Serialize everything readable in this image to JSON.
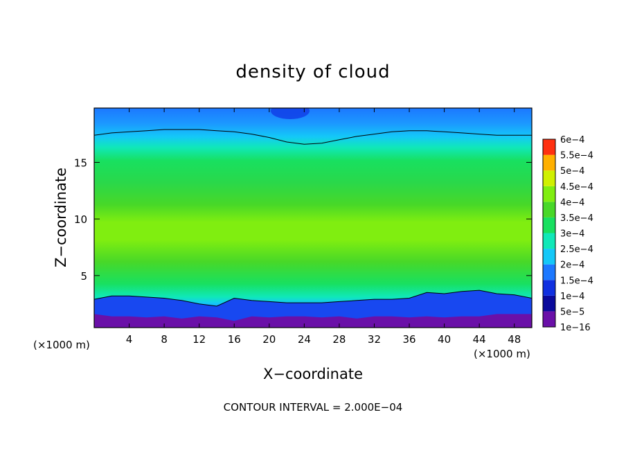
{
  "chart_data": {
    "type": "heatmap",
    "title": "density of cloud",
    "xlabel": "X−coordinate",
    "ylabel": "Z−coordinate",
    "x_unit": "(×1000 m)",
    "xlim": [
      0,
      50
    ],
    "ylim": [
      0.4,
      19.8
    ],
    "x_ticks": [
      4,
      8,
      12,
      16,
      20,
      24,
      28,
      32,
      36,
      40,
      44,
      48
    ],
    "y_ticks": [
      5,
      10,
      15
    ],
    "footer": "CONTOUR INTERVAL = 2.000E−04",
    "colorbar": {
      "labels": [
        "1e−16",
        "5e−5",
        "1e−4",
        "1.5e−4",
        "2e−4",
        "2.5e−4",
        "3e−4",
        "3.5e−4",
        "4e−4",
        "4.5e−4",
        "5e−4",
        "5.5e−4",
        "6e−4"
      ],
      "colors": [
        "#6a10a8",
        "#0a0a9c",
        "#1030e0",
        "#1c78ff",
        "#14c8f8",
        "#10e8b8",
        "#18e060",
        "#48d828",
        "#80ee10",
        "#d0f000",
        "#ffb000",
        "#ff3010",
        "#ff9090"
      ]
    },
    "profiles": {
      "x": [
        0,
        2,
        4,
        6,
        8,
        10,
        12,
        14,
        16,
        18,
        20,
        22,
        24,
        26,
        28,
        30,
        32,
        34,
        36,
        38,
        40,
        42,
        44,
        46,
        48,
        50
      ],
      "ground": [
        1.2,
        1.0,
        1.0,
        0.9,
        1.0,
        0.8,
        1.0,
        0.9,
        0.6,
        1.0,
        0.9,
        1.0,
        1.0,
        0.9,
        1.0,
        0.8,
        1.0,
        1.0,
        0.9,
        1.0,
        0.9,
        1.0,
        1.0,
        1.2,
        1.2,
        1.2
      ],
      "low_contour": [
        2.9,
        3.2,
        3.2,
        3.1,
        3.0,
        2.8,
        2.5,
        2.3,
        3.0,
        2.8,
        2.7,
        2.6,
        2.6,
        2.6,
        2.7,
        2.8,
        2.9,
        2.9,
        3.0,
        3.5,
        3.4,
        3.6,
        3.7,
        3.4,
        3.3,
        3.0
      ],
      "upper_contour": [
        17.4,
        17.6,
        17.7,
        17.8,
        17.9,
        17.9,
        17.9,
        17.8,
        17.7,
        17.5,
        17.2,
        16.8,
        16.6,
        16.7,
        17.0,
        17.3,
        17.5,
        17.7,
        17.8,
        17.8,
        17.7,
        17.6,
        17.5,
        17.4,
        17.4,
        17.4
      ]
    }
  }
}
